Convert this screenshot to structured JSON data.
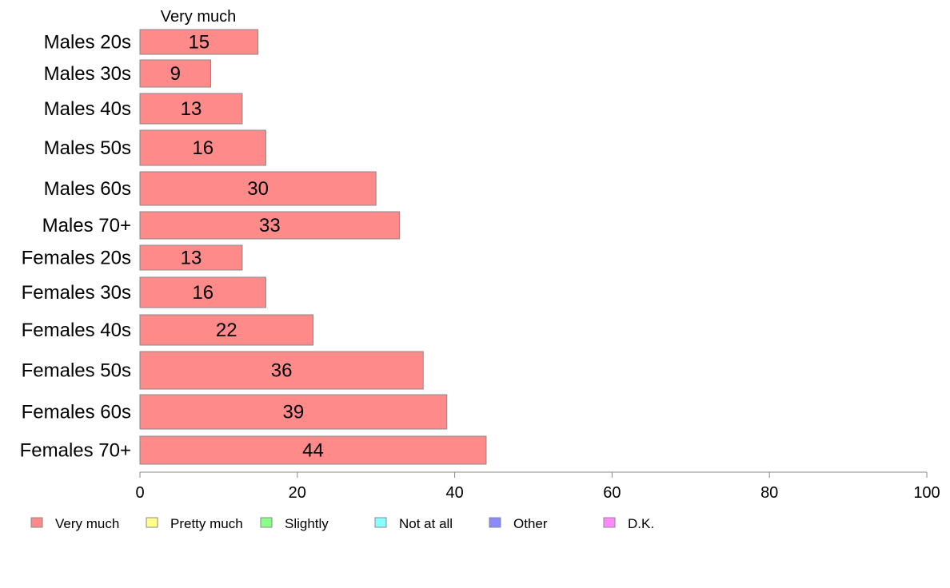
{
  "chart_data": {
    "type": "bar",
    "orientation": "horizontal",
    "stacked": true,
    "categories": [
      "Males 20s",
      "Males 30s",
      "Males 40s",
      "Males 50s",
      "Males 60s",
      "Males 70+",
      "Females 20s",
      "Females 30s",
      "Females 40s",
      "Females 50s",
      "Females 60s",
      "Females 70+"
    ],
    "series": [
      {
        "name": "Very much",
        "values": [
          15,
          9,
          13,
          16,
          30,
          33,
          13,
          16,
          22,
          36,
          39,
          44
        ],
        "color": "#ff8a8a"
      }
    ],
    "column_header": "Very much",
    "xlim": [
      0,
      100
    ],
    "xticks": [
      "0",
      "20",
      "40",
      "60",
      "80",
      "100"
    ],
    "grid": false,
    "legend_position": "bottom",
    "legend": [
      {
        "label": "Very much",
        "color": "#ff8a8a"
      },
      {
        "label": "Pretty much",
        "color": "#ffff8a"
      },
      {
        "label": "Slightly",
        "color": "#8aff8a"
      },
      {
        "label": "Not at all",
        "color": "#8affff"
      },
      {
        "label": "Other",
        "color": "#8a8aff"
      },
      {
        "label": "D.K.",
        "color": "#ff8aff"
      }
    ]
  }
}
